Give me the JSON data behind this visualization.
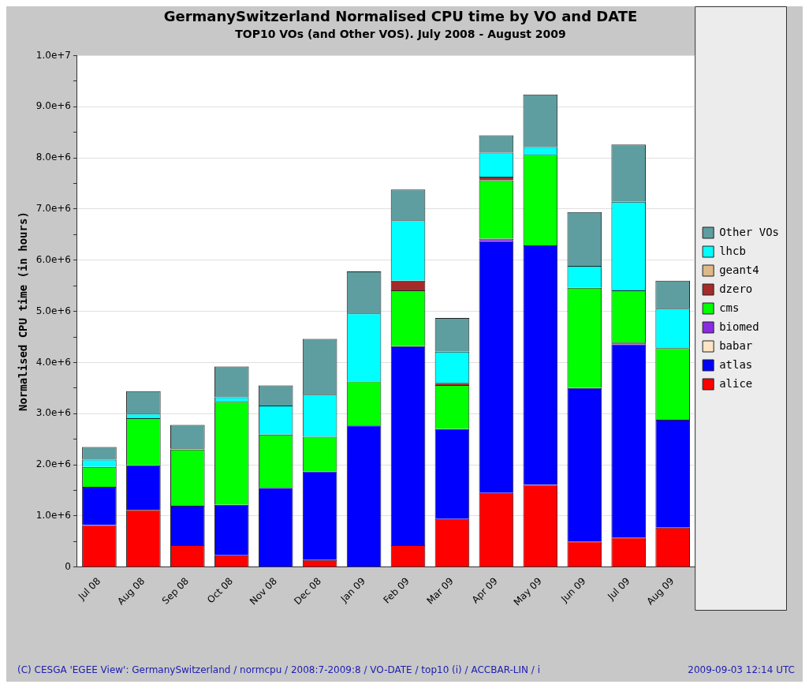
{
  "chart_data": {
    "type": "bar",
    "stacked": true,
    "title": "GermanySwitzerland Normalised CPU time by VO and DATE",
    "subtitle": "TOP10 VOs (and Other VOS). July 2008 - August 2009",
    "ylabel": "Normalised CPU time (in hours)",
    "categories": [
      "Jul 08",
      "Aug 08",
      "Sep 08",
      "Oct 08",
      "Nov 08",
      "Dec 08",
      "Jan 09",
      "Feb 09",
      "Mar 09",
      "Apr 09",
      "May 09",
      "Jun 09",
      "Jul 09",
      "Aug 09"
    ],
    "series": [
      {
        "name": "alice",
        "color": "#ff0000",
        "values": [
          820000,
          1120000,
          430000,
          230000,
          null,
          140000,
          null,
          430000,
          940000,
          1450000,
          1610000,
          500000,
          580000,
          770000
        ]
      },
      {
        "name": "atlas",
        "color": "#0000ff",
        "values": [
          750000,
          870000,
          770000,
          990000,
          1550000,
          1730000,
          2770000,
          3890000,
          1760000,
          4920000,
          4680000,
          3000000,
          3770000,
          2110000
        ]
      },
      {
        "name": "babar",
        "color": "#ffe4c4",
        "values": [
          0,
          0,
          0,
          0,
          0,
          0,
          0,
          0,
          0,
          0,
          0,
          0,
          0,
          0
        ]
      },
      {
        "name": "biomed",
        "color": "#8a2be2",
        "values": [
          0,
          0,
          0,
          0,
          0,
          0,
          0,
          0,
          0,
          50000,
          0,
          0,
          40000,
          0
        ]
      },
      {
        "name": "cms",
        "color": "#00ff00",
        "values": [
          390000,
          920000,
          1100000,
          2010000,
          1040000,
          680000,
          860000,
          1090000,
          860000,
          1140000,
          1770000,
          1960000,
          1020000,
          1400000
        ]
      },
      {
        "name": "dzero",
        "color": "#a52a2a",
        "values": [
          0,
          0,
          0,
          0,
          0,
          0,
          0,
          190000,
          40000,
          70000,
          0,
          0,
          0,
          0
        ]
      },
      {
        "name": "geant4",
        "color": "#deb887",
        "values": [
          0,
          0,
          0,
          0,
          0,
          0,
          0,
          0,
          0,
          0,
          0,
          0,
          0,
          0
        ]
      },
      {
        "name": "lhcb",
        "color": "#00ffff",
        "values": [
          140000,
          90000,
          20000,
          90000,
          570000,
          820000,
          1330000,
          1180000,
          610000,
          470000,
          150000,
          430000,
          1730000,
          770000
        ]
      },
      {
        "name": "Other VOs",
        "color": "#5f9ea0",
        "values": [
          250000,
          440000,
          460000,
          600000,
          390000,
          1090000,
          820000,
          600000,
          660000,
          340000,
          1030000,
          1050000,
          1120000,
          550000
        ]
      }
    ],
    "ylim": [
      0,
      10000000
    ],
    "yticks": [
      0,
      {
        "value": 500000,
        "label": null
      },
      {
        "value": 1000000,
        "label": "1.0e+6"
      },
      {
        "value": 1500000,
        "label": null
      },
      {
        "value": 2000000,
        "label": "2.0e+6"
      },
      {
        "value": 2500000,
        "label": null
      },
      {
        "value": 3000000,
        "label": "3.0e+6"
      },
      {
        "value": 3500000,
        "label": null
      },
      {
        "value": 4000000,
        "label": "4.0e+6"
      },
      {
        "value": 4500000,
        "label": null
      },
      {
        "value": 5000000,
        "label": "5.0e+6"
      },
      {
        "value": 5500000,
        "label": null
      },
      {
        "value": 6000000,
        "label": "6.0e+6"
      },
      {
        "value": 6500000,
        "label": null
      },
      {
        "value": 7000000,
        "label": "7.0e+6"
      },
      {
        "value": 7500000,
        "label": null
      },
      {
        "value": 8000000,
        "label": "8.0e+6"
      },
      {
        "value": 8500000,
        "label": null
      },
      {
        "value": 9000000,
        "label": "9.0e+6"
      },
      {
        "value": 9500000,
        "label": null
      },
      {
        "value": 10000000,
        "label": "1.0e+7"
      }
    ],
    "grid": "y",
    "legend": "right",
    "annotations": [
      "(C) CESGA 'EGEE View': GermanySwitzerland / normcpu / 2008:7-2009:8 / VO-DATE / top10 (i) / ACCBAR-LIN / i",
      "2009-09-03 12:14 UTC"
    ]
  }
}
